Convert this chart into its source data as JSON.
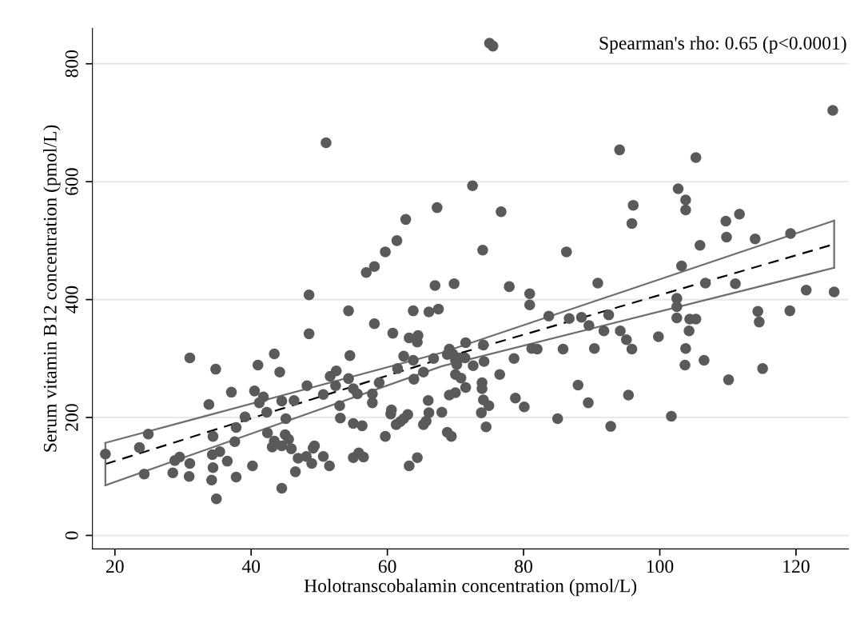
{
  "chart_data": {
    "type": "scatter",
    "xlabel": "Holotranscobalamin concentration (pmol/L)",
    "ylabel": "Serum vitamin B12 concentration (pmol/L)",
    "annotations": [
      "Spearman's rho: 0.65 (p<0.0001)"
    ],
    "xlim": [
      16.7,
      127.7
    ],
    "ylim": [
      -23,
      860
    ],
    "xticks": [
      20,
      40,
      60,
      80,
      100,
      120
    ],
    "yticks": [
      0,
      200,
      400,
      600,
      800
    ],
    "grid": "y",
    "legend": false,
    "series": [
      {
        "type": "scatter",
        "color": "#5a5a5a",
        "marker": "circle",
        "x": [
          18.6,
          23.6,
          24.9,
          24.3,
          28.5,
          28.8,
          29.5,
          31.0,
          31.0,
          30.9,
          33.8,
          34.2,
          34.4,
          34.4,
          34.8,
          34.3,
          35.4,
          34.9,
          36.5,
          37.1,
          37.6,
          37.8,
          37.8,
          39.1,
          40.2,
          40.5,
          41.0,
          41.8,
          41.2,
          42.3,
          42.4,
          43.4,
          43.4,
          43.1,
          44.2,
          44.5,
          44.5,
          44.5,
          45.1,
          45.0,
          45.5,
          45.9,
          46.3,
          46.9,
          46.5,
          48.2,
          48.5,
          48.5,
          48.1,
          49.3,
          49.1,
          48.9,
          50.6,
          51.5,
          50.6,
          51.6,
          52.5,
          52.4,
          53.0,
          53.1,
          54.3,
          54.5,
          54.3,
          55.0,
          55.6,
          55.0,
          56.3,
          55.0,
          55.8,
          56.5,
          58.1,
          57.8,
          57.8,
          58.8,
          59.7,
          60.8,
          60.6,
          60.5,
          61.5,
          62.4,
          61.3,
          61.9,
          62.4,
          63.0,
          63.2,
          63.8,
          63.8,
          63.9,
          64.5,
          64.4,
          63.2,
          64.4,
          65.3,
          66.0,
          66.1,
          65.3,
          65.7,
          66.1,
          67.5,
          66.8,
          68.0,
          68.8,
          69.4,
          69.1,
          68.8,
          69.6,
          70.0,
          70.6,
          70.0,
          70.8,
          69.1,
          70.0,
          70.2,
          71.4,
          71.5,
          71.5,
          72.6,
          73.9,
          73.9,
          74.1,
          74.2,
          74.1,
          74.9,
          73.8,
          74.5,
          76.5,
          78.8,
          80.1,
          78.6,
          81.2,
          82.0,
          80.9,
          80.9,
          83.7,
          86.7,
          85.8,
          85.0,
          88.0,
          75.0,
          75.5,
          51.0,
          72.5,
          67.3,
          76.7,
          62.7,
          61.4,
          59.7,
          58.1,
          56.9,
          74.0,
          86.3,
          67.0,
          69.8,
          77.9,
          125.4,
          94.1,
          105.3,
          102.7,
          103.8,
          103.8,
          96.1,
          95.9,
          109.7,
          111.7,
          109.8,
          114.0,
          119.2,
          105.9,
          103.2,
          90.9,
          106.7,
          111.1,
          121.5,
          125.6,
          102.5,
          102.5,
          102.5,
          104.4,
          105.3,
          104.3,
          103.8,
          103.7,
          106.5,
          88.5,
          92.5,
          89.6,
          91.8,
          94.2,
          95.1,
          95.9,
          90.4,
          99.8,
          89.5,
          95.4,
          92.8,
          101.7,
          110.1,
          114.4,
          114.6,
          115.1,
          119.1
        ],
        "values": [
          138,
          149,
          172,
          104,
          106,
          127,
          133,
          301,
          122,
          100,
          222,
          94,
          168,
          115,
          282,
          137,
          142,
          62,
          126,
          243,
          159,
          183,
          99,
          201,
          118,
          245,
          289,
          235,
          225,
          209,
          174,
          308,
          160,
          150,
          277,
          228,
          80,
          152,
          198,
          171,
          163,
          147,
          229,
          131,
          108,
          254,
          342,
          408,
          134,
          152,
          148,
          122,
          134,
          118,
          239,
          270,
          279,
          254,
          220,
          199,
          381,
          305,
          266,
          249,
          240,
          190,
          186,
          132,
          140,
          133,
          359,
          240,
          225,
          259,
          168,
          343,
          213,
          206,
          283,
          304,
          188,
          193,
          198,
          205,
          335,
          381,
          297,
          265,
          339,
          328,
          118,
          132,
          277,
          229,
          208,
          188,
          194,
          379,
          384,
          300,
          209,
          175,
          168,
          316,
          307,
          308,
          297,
          301,
          273,
          267,
          238,
          242,
          290,
          301,
          327,
          251,
          288,
          259,
          249,
          323,
          295,
          230,
          220,
          208,
          184,
          273,
          233,
          218,
          300,
          317,
          316,
          410,
          391,
          372,
          368,
          316,
          198,
          255,
          835,
          830,
          666,
          593,
          556,
          549,
          536,
          500,
          481,
          456,
          446,
          484,
          481,
          424,
          427,
          422,
          721,
          654,
          641,
          588,
          569,
          552,
          560,
          529,
          533,
          545,
          506,
          503,
          512,
          492,
          457,
          428,
          428,
          427,
          416,
          413,
          402,
          388,
          369,
          367,
          367,
          347,
          317,
          289,
          297,
          370,
          374,
          356,
          347,
          347,
          332,
          316,
          317,
          337,
          225,
          238,
          185,
          202,
          264,
          380,
          362,
          283,
          381
        ]
      },
      {
        "type": "line",
        "color": "#000000",
        "line_style": "dashed",
        "marker": "none",
        "x": [
          18.6,
          68,
          125.6
        ],
        "values": [
          121,
          300,
          494
        ]
      },
      {
        "type": "line",
        "color": "#6e6e6e",
        "line_style": "solid",
        "marker": "none",
        "x": [
          18.6,
          68,
          125.6
        ],
        "values": [
          157,
          310,
          534
        ]
      },
      {
        "type": "line",
        "color": "#6e6e6e",
        "line_style": "solid",
        "marker": "none",
        "x": [
          18.6,
          68,
          125.6
        ],
        "values": [
          85,
          287,
          454
        ]
      },
      {
        "type": "line",
        "color": "#6e6e6e",
        "line_style": "solid",
        "marker": "none",
        "x": [
          18.6,
          18.6
        ],
        "values": [
          85,
          157
        ]
      },
      {
        "type": "line",
        "color": "#6e6e6e",
        "line_style": "solid",
        "marker": "none",
        "x": [
          125.6,
          125.6
        ],
        "values": [
          454,
          534
        ]
      }
    ]
  }
}
